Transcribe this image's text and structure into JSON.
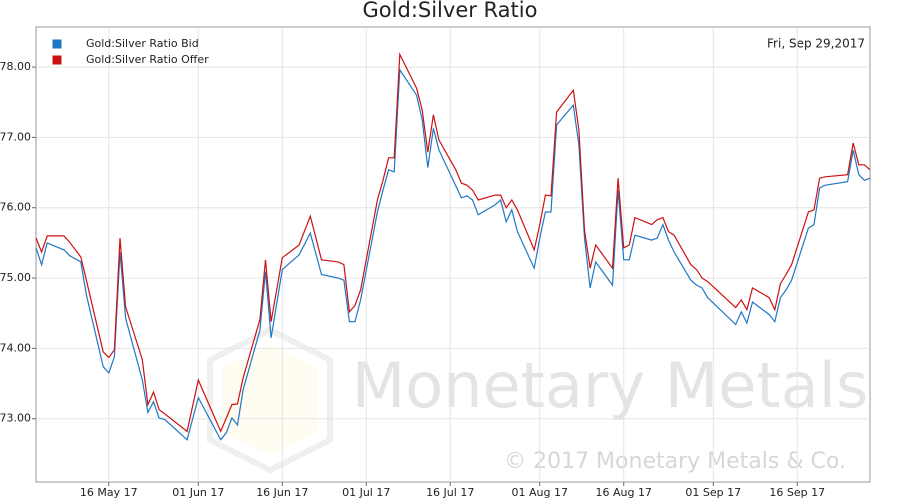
{
  "chart_data": {
    "type": "line",
    "title": "Gold:Silver Ratio",
    "annotation": "Fri, Sep 29,2017",
    "watermark": "Monetary Metals",
    "copyright": "© 2017 Monetary Metals & Co.",
    "x": [
      "2017-05-03",
      "2017-05-04",
      "2017-05-05",
      "2017-05-08",
      "2017-05-09",
      "2017-05-11",
      "2017-05-12",
      "2017-05-15",
      "2017-05-16",
      "2017-05-17",
      "2017-05-18",
      "2017-05-19",
      "2017-05-22",
      "2017-05-23",
      "2017-05-24",
      "2017-05-25",
      "2017-05-26",
      "2017-05-30",
      "2017-06-01",
      "2017-06-05",
      "2017-06-06",
      "2017-06-07",
      "2017-06-08",
      "2017-06-09",
      "2017-06-12",
      "2017-06-13",
      "2017-06-14",
      "2017-06-16",
      "2017-06-19",
      "2017-06-21",
      "2017-06-23",
      "2017-06-26",
      "2017-06-27",
      "2017-06-28",
      "2017-06-29",
      "2017-06-30",
      "2017-07-03",
      "2017-07-04",
      "2017-07-05",
      "2017-07-06",
      "2017-07-07",
      "2017-07-10",
      "2017-07-11",
      "2017-07-12",
      "2017-07-13",
      "2017-07-14",
      "2017-07-17",
      "2017-07-18",
      "2017-07-19",
      "2017-07-20",
      "2017-07-21",
      "2017-07-24",
      "2017-07-25",
      "2017-07-26",
      "2017-07-27",
      "2017-07-28",
      "2017-07-31",
      "2017-08-01",
      "2017-08-02",
      "2017-08-03",
      "2017-08-04",
      "2017-08-07",
      "2017-08-08",
      "2017-08-09",
      "2017-08-10",
      "2017-08-11",
      "2017-08-14",
      "2017-08-15",
      "2017-08-16",
      "2017-08-17",
      "2017-08-18",
      "2017-08-21",
      "2017-08-22",
      "2017-08-23",
      "2017-08-24",
      "2017-08-25",
      "2017-08-28",
      "2017-08-29",
      "2017-08-30",
      "2017-08-31",
      "2017-09-05",
      "2017-09-06",
      "2017-09-07",
      "2017-09-08",
      "2017-09-11",
      "2017-09-12",
      "2017-09-13",
      "2017-09-14",
      "2017-09-15",
      "2017-09-18",
      "2017-09-19",
      "2017-09-20",
      "2017-09-21",
      "2017-09-25",
      "2017-09-26",
      "2017-09-27",
      "2017-09-28",
      "2017-09-29"
    ],
    "series": [
      {
        "name": "Gold:Silver Ratio Bid",
        "color": "#1f77c4",
        "values": [
          75.43,
          75.19,
          75.5,
          75.4,
          75.32,
          75.23,
          74.76,
          73.74,
          73.65,
          73.88,
          75.37,
          74.43,
          73.55,
          73.09,
          73.24,
          73.01,
          72.99,
          72.7,
          73.3,
          72.7,
          72.8,
          73.01,
          72.91,
          73.41,
          74.26,
          75.09,
          74.15,
          75.12,
          75.33,
          75.64,
          75.05,
          75.0,
          74.97,
          74.38,
          74.38,
          74.69,
          75.94,
          76.25,
          76.54,
          76.51,
          77.96,
          77.6,
          77.25,
          76.57,
          77.13,
          76.82,
          76.31,
          76.14,
          76.17,
          76.11,
          75.9,
          76.04,
          76.11,
          75.8,
          75.97,
          75.66,
          75.14,
          75.57,
          75.94,
          75.94,
          77.18,
          77.46,
          76.89,
          75.57,
          74.86,
          75.23,
          74.9,
          76.25,
          75.26,
          75.26,
          75.61,
          75.54,
          75.57,
          75.76,
          75.54,
          75.37,
          74.97,
          74.9,
          74.86,
          74.72,
          74.34,
          74.52,
          74.36,
          74.66,
          74.48,
          74.38,
          74.72,
          74.83,
          74.97,
          75.71,
          75.76,
          76.28,
          76.32,
          76.37,
          76.82,
          76.47,
          76.39,
          76.42
        ]
      },
      {
        "name": "Gold:Silver Ratio Offer",
        "color": "#cc1111",
        "values": [
          75.57,
          75.37,
          75.6,
          75.6,
          75.51,
          75.3,
          74.97,
          73.95,
          73.87,
          73.98,
          75.57,
          74.59,
          73.84,
          73.2,
          73.38,
          73.13,
          73.07,
          72.82,
          73.55,
          72.82,
          73.01,
          73.2,
          73.21,
          73.58,
          74.41,
          75.26,
          74.38,
          75.29,
          75.47,
          75.88,
          75.26,
          75.23,
          75.19,
          74.52,
          74.61,
          74.83,
          76.11,
          76.39,
          76.71,
          76.71,
          78.18,
          77.7,
          77.39,
          76.79,
          77.32,
          76.96,
          76.54,
          76.35,
          76.32,
          76.25,
          76.11,
          76.18,
          76.18,
          76.0,
          76.11,
          75.97,
          75.4,
          75.76,
          76.18,
          76.17,
          77.36,
          77.67,
          77.11,
          75.68,
          75.14,
          75.47,
          75.14,
          76.42,
          75.43,
          75.47,
          75.86,
          75.76,
          75.83,
          75.86,
          75.66,
          75.61,
          75.19,
          75.12,
          75.0,
          74.95,
          74.58,
          74.69,
          74.55,
          74.86,
          74.72,
          74.55,
          74.92,
          75.05,
          75.19,
          75.94,
          75.97,
          76.42,
          76.44,
          76.47,
          76.92,
          76.61,
          76.61,
          76.54
        ]
      }
    ],
    "xlim": [
      "2017-05-03",
      "2017-09-29"
    ],
    "xticks": [
      {
        "value": "2017-05-16",
        "label": "16 May 17"
      },
      {
        "value": "2017-06-01",
        "label": "01 Jun 17"
      },
      {
        "value": "2017-06-16",
        "label": "16 Jun 17"
      },
      {
        "value": "2017-07-01",
        "label": "01 Jul 17"
      },
      {
        "value": "2017-07-16",
        "label": "16 Jul 17"
      },
      {
        "value": "2017-08-01",
        "label": "01 Aug 17"
      },
      {
        "value": "2017-08-16",
        "label": "16 Aug 17"
      },
      {
        "value": "2017-09-01",
        "label": "01 Sep 17"
      },
      {
        "value": "2017-09-16",
        "label": "16 Sep 17"
      }
    ],
    "ylim": [
      72.1,
      78.57
    ],
    "yticks": [
      {
        "value": 73,
        "label": "73.00"
      },
      {
        "value": 74,
        "label": "74.00"
      },
      {
        "value": 75,
        "label": "75.00"
      },
      {
        "value": 76,
        "label": "76.00"
      },
      {
        "value": 77,
        "label": "77.00"
      },
      {
        "value": 78,
        "label": "78.00"
      }
    ],
    "grid": true,
    "legend": "top-left"
  }
}
